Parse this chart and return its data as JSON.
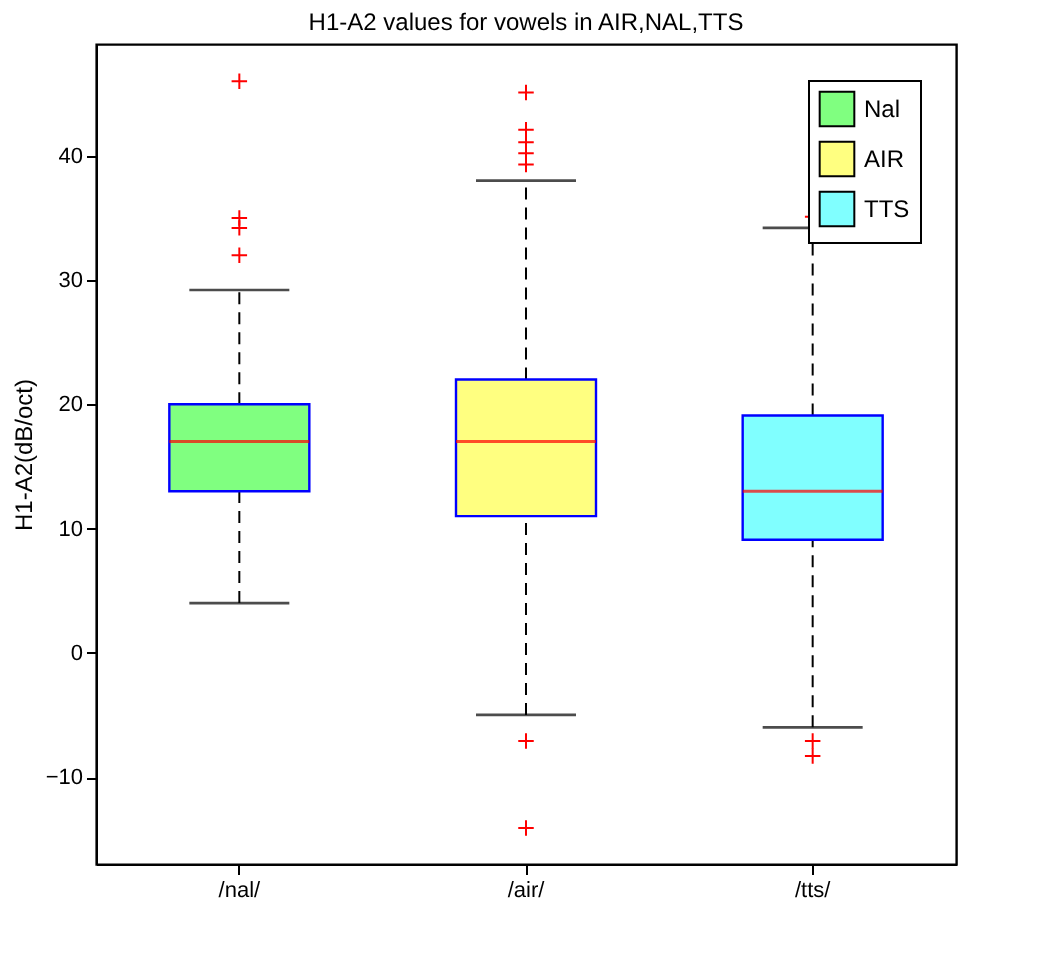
{
  "chart_data": {
    "type": "box",
    "title": "H1-A2 values for vowels in AIR,NAL,TTS",
    "ylabel": "H1-A2(dB/oct)",
    "categories": [
      "/nal/",
      "/air/",
      "/tts/"
    ],
    "series": [
      {
        "name": "Nal",
        "color": "#80ff80",
        "boxes": [
          {
            "low": 4,
            "q1": 13,
            "median": 17,
            "q3": 20,
            "high": 29.2,
            "outliers": [
              32,
              34.2,
              35,
              46
            ]
          },
          null,
          null
        ]
      },
      {
        "name": "AIR",
        "color": "#ffff80",
        "boxes": [
          null,
          {
            "low": -5,
            "q1": 11,
            "median": 17,
            "q3": 22,
            "high": 38,
            "outliers": [
              -14.1,
              -7.1,
              39.3,
              40.2,
              41.1,
              42.1,
              45.1
            ]
          },
          null
        ]
      },
      {
        "name": "TTS",
        "color": "#80ffff",
        "boxes": [
          null,
          null,
          {
            "low": -6,
            "q1": 9.1,
            "median": 13,
            "q3": 19.1,
            "high": 34.2,
            "outliers": [
              -8.3,
              -7.1,
              35.1
            ]
          }
        ]
      }
    ],
    "ylim": [
      -17,
      49
    ],
    "yticks": [
      -10,
      0,
      10,
      20,
      30,
      40
    ],
    "grid": false,
    "legend": "top right",
    "marker": "cross"
  }
}
